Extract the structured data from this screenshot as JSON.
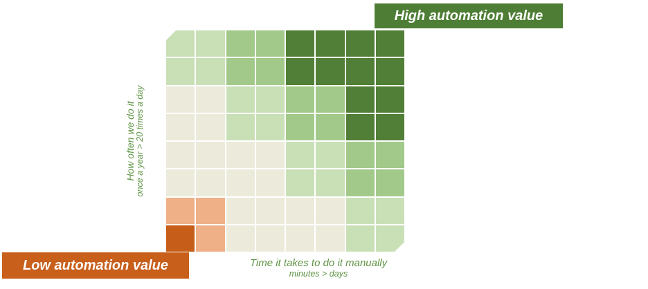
{
  "badges": {
    "high": "High automation value",
    "low": "Low automation value"
  },
  "axes": {
    "y_label": "How often we do it",
    "y_sublabel": "once a year > 20 times a day",
    "x_label": "Time it takes to do it  manually",
    "x_sublabel": "minutes > days"
  },
  "colors": {
    "cream": "#ecebdb",
    "light_green": "#c9e0b7",
    "mid_green": "#a2c98a",
    "dark_green": "#517f37",
    "light_orange": "#efb088",
    "dark_orange": "#c65e19",
    "high_badge": "#4e7d35",
    "low_badge": "#c85f1b",
    "axis_text": "#5f9444"
  },
  "matrix": {
    "rows_top_to_bottom": [
      [
        "light_green",
        "light_green",
        "mid_green",
        "mid_green",
        "dark_green",
        "dark_green",
        "dark_green",
        "dark_green"
      ],
      [
        "light_green",
        "light_green",
        "mid_green",
        "mid_green",
        "dark_green",
        "dark_green",
        "dark_green",
        "dark_green"
      ],
      [
        "cream",
        "cream",
        "light_green",
        "light_green",
        "mid_green",
        "mid_green",
        "dark_green",
        "dark_green"
      ],
      [
        "cream",
        "cream",
        "light_green",
        "light_green",
        "mid_green",
        "mid_green",
        "dark_green",
        "dark_green"
      ],
      [
        "cream",
        "cream",
        "cream",
        "cream",
        "light_green",
        "light_green",
        "mid_green",
        "mid_green"
      ],
      [
        "cream",
        "cream",
        "cream",
        "cream",
        "light_green",
        "light_green",
        "mid_green",
        "mid_green"
      ],
      [
        "light_orange",
        "light_orange",
        "cream",
        "cream",
        "cream",
        "cream",
        "light_green",
        "light_green"
      ],
      [
        "dark_orange",
        "light_orange",
        "cream",
        "cream",
        "cream",
        "cream",
        "light_green",
        "light_green"
      ]
    ]
  }
}
